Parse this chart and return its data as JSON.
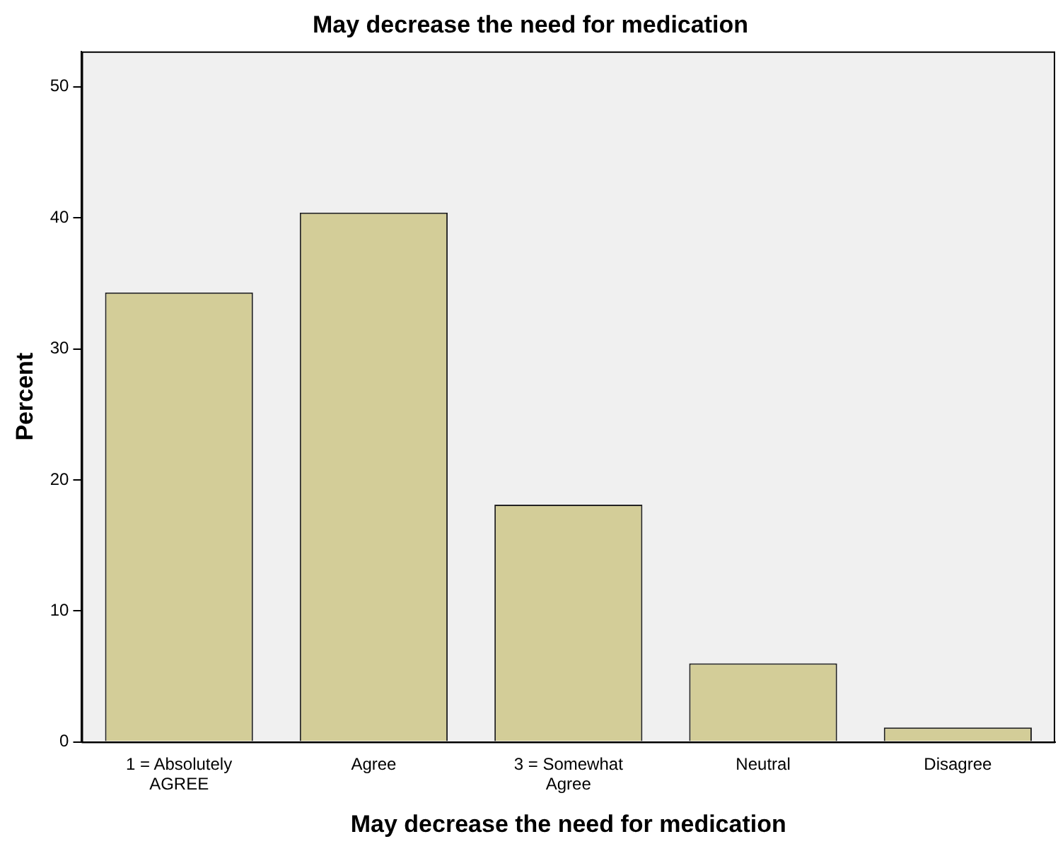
{
  "chart_data": {
    "type": "bar",
    "title": "May decrease the need for medication",
    "xlabel": "May decrease the need for medication",
    "ylabel": "Percent",
    "categories": [
      "1 = Absolutely AGREE",
      "Agree",
      "3 = Somewhat Agree",
      "Neutral",
      "Disagree"
    ],
    "values": [
      34.3,
      40.4,
      18.1,
      6.0,
      1.1
    ],
    "color": "#d3cd98",
    "ylim": [
      0,
      52.7
    ],
    "yticks": [
      0,
      10,
      20,
      30,
      40,
      50
    ],
    "grid": false,
    "legend": false
  }
}
